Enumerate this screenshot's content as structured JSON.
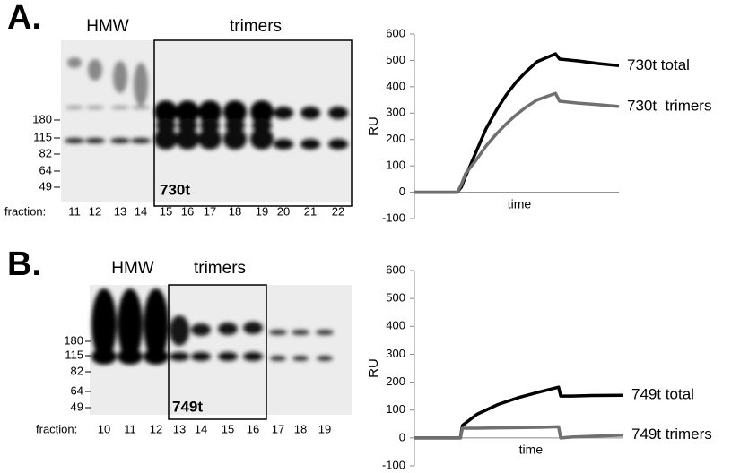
{
  "gels": [
    {
      "panel_label": "A.",
      "group_labels": [
        "HMW",
        "trimers"
      ],
      "lane_label": "730t",
      "markers": [
        "180",
        "115",
        "82",
        "64",
        "49"
      ],
      "fraction_label": "fraction:",
      "fractions": [
        "11",
        "12",
        "13",
        "14",
        "15",
        "16",
        "17",
        "18",
        "19",
        "20",
        "21",
        "22"
      ]
    },
    {
      "panel_label": "B.",
      "group_labels": [
        "HMW",
        "trimers"
      ],
      "lane_label": "749t",
      "markers": [
        "180",
        "115",
        "82",
        "64",
        "49"
      ],
      "fraction_label": "fraction:",
      "fractions": [
        "10",
        "11",
        "12",
        "13",
        "14",
        "15",
        "16",
        "17",
        "18",
        "19"
      ]
    }
  ],
  "chart_data": [
    {
      "type": "line",
      "ylabel": "RU",
      "xlabel": "time",
      "ylim": [
        -100,
        600
      ],
      "yticks": [
        -100,
        0,
        100,
        200,
        300,
        400,
        500,
        600
      ],
      "xlim": [
        0,
        100
      ],
      "x": [
        0,
        10,
        21,
        23,
        25,
        30,
        35,
        40,
        45,
        50,
        55,
        60,
        69,
        71,
        80,
        90,
        100
      ],
      "series": [
        {
          "name": "730t total",
          "color": "#000000",
          "values": [
            0,
            0,
            0,
            20,
            60,
            150,
            240,
            310,
            370,
            420,
            460,
            495,
            525,
            505,
            498,
            488,
            480
          ]
        },
        {
          "name": "730t  trimers",
          "color": "#707070",
          "values": [
            0,
            0,
            0,
            30,
            70,
            120,
            175,
            220,
            260,
            295,
            325,
            350,
            375,
            345,
            338,
            332,
            325
          ]
        }
      ]
    },
    {
      "type": "line",
      "ylabel": "RU",
      "xlabel": "time",
      "ylim": [
        -100,
        600
      ],
      "yticks": [
        -100,
        0,
        100,
        200,
        300,
        400,
        500,
        600
      ],
      "xlim": [
        0,
        100
      ],
      "x": [
        0,
        10,
        22,
        23,
        30,
        40,
        50,
        60,
        69,
        70,
        75,
        85,
        100
      ],
      "series": [
        {
          "name": "749t total",
          "color": "#000000",
          "values": [
            0,
            0,
            0,
            45,
            85,
            120,
            145,
            165,
            182,
            150,
            150,
            152,
            153
          ]
        },
        {
          "name": "749t trimers",
          "color": "#707070",
          "values": [
            0,
            0,
            0,
            35,
            35,
            36,
            37,
            38,
            40,
            0,
            3,
            6,
            10
          ]
        }
      ]
    }
  ]
}
